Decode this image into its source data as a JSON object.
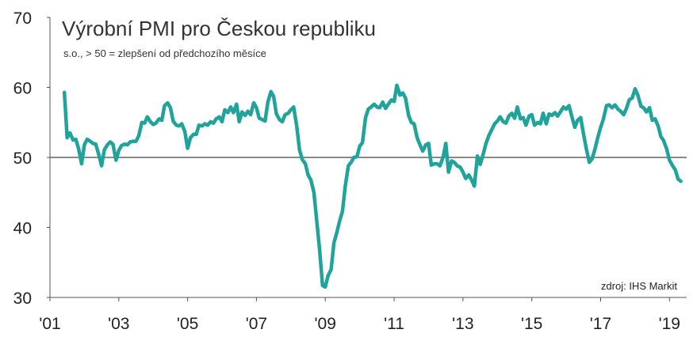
{
  "chart_data": {
    "type": "line",
    "title": "Výrobní PMI pro Českou republiku",
    "subtitle": "s.o., > 50 = zlepšení od předchozího měsíce",
    "source": "zdroj: IHS Markit",
    "xlabel": "",
    "ylabel": "",
    "xlim": [
      2001.0,
      2019.5
    ],
    "ylim": [
      30,
      70
    ],
    "yticks": [
      30,
      40,
      50,
      60,
      70
    ],
    "ytick_labels": [
      "30",
      "40",
      "50",
      "60",
      "70"
    ],
    "xticks": [
      2001,
      2003,
      2005,
      2007,
      2009,
      2011,
      2013,
      2015,
      2017,
      2019
    ],
    "xtick_labels": [
      "'01",
      "'03",
      "'05",
      "'07",
      "'09",
      "'11",
      "'13",
      "'15",
      "'17",
      "'19"
    ],
    "reference_line": 50,
    "grid": false,
    "line_color": "#1fa39a",
    "series": [
      {
        "x": [
          2001.42,
          2001.5,
          2001.58,
          2001.67,
          2001.75,
          2001.83,
          2001.92,
          2002.0,
          2002.08,
          2002.17,
          2002.25,
          2002.33,
          2002.42,
          2002.5,
          2002.58,
          2002.67,
          2002.75,
          2002.83,
          2002.92,
          2003.0,
          2003.08,
          2003.17,
          2003.25,
          2003.33,
          2003.42,
          2003.5,
          2003.58,
          2003.67,
          2003.75,
          2003.83,
          2003.92,
          2004.0,
          2004.08,
          2004.17,
          2004.25,
          2004.33,
          2004.42,
          2004.5,
          2004.58,
          2004.67,
          2004.75,
          2004.83,
          2004.92,
          2005.0,
          2005.08,
          2005.17,
          2005.25,
          2005.33,
          2005.42,
          2005.5,
          2005.58,
          2005.67,
          2005.75,
          2005.83,
          2005.92,
          2006.0,
          2006.08,
          2006.17,
          2006.25,
          2006.33,
          2006.42,
          2006.5,
          2006.58,
          2006.67,
          2006.75,
          2006.83,
          2006.92,
          2007.0,
          2007.08,
          2007.17,
          2007.25,
          2007.33,
          2007.42,
          2007.5,
          2007.58,
          2007.67,
          2007.75,
          2007.83,
          2007.92,
          2008.0,
          2008.08,
          2008.17,
          2008.25,
          2008.33,
          2008.42,
          2008.5,
          2008.58,
          2008.67,
          2008.75,
          2008.83,
          2008.92,
          2009.0,
          2009.08,
          2009.17,
          2009.25,
          2009.33,
          2009.42,
          2009.5,
          2009.58,
          2009.67,
          2009.75,
          2009.83,
          2009.92,
          2010.0,
          2010.08,
          2010.17,
          2010.25,
          2010.33,
          2010.42,
          2010.5,
          2010.58,
          2010.67,
          2010.75,
          2010.83,
          2010.92,
          2011.0,
          2011.08,
          2011.17,
          2011.25,
          2011.33,
          2011.42,
          2011.5,
          2011.58,
          2011.67,
          2011.75,
          2011.83,
          2011.92,
          2012.0,
          2012.08,
          2012.17,
          2012.25,
          2012.33,
          2012.42,
          2012.5,
          2012.58,
          2012.67,
          2012.75,
          2012.83,
          2012.92,
          2013.0,
          2013.08,
          2013.17,
          2013.25,
          2013.33,
          2013.42,
          2013.5,
          2013.58,
          2013.67,
          2013.75,
          2013.83,
          2013.92,
          2014.0,
          2014.08,
          2014.17,
          2014.25,
          2014.33,
          2014.42,
          2014.5,
          2014.58,
          2014.67,
          2014.75,
          2014.83,
          2014.92,
          2015.0,
          2015.08,
          2015.17,
          2015.25,
          2015.33,
          2015.42,
          2015.5,
          2015.58,
          2015.67,
          2015.75,
          2015.83,
          2015.92,
          2016.0,
          2016.08,
          2016.17,
          2016.25,
          2016.33,
          2016.42,
          2016.5,
          2016.58,
          2016.67,
          2016.75,
          2016.83,
          2016.92,
          2017.0,
          2017.08,
          2017.17,
          2017.25,
          2017.33,
          2017.42,
          2017.5,
          2017.58,
          2017.67,
          2017.75,
          2017.83,
          2017.92,
          2018.0,
          2018.08,
          2018.17,
          2018.25,
          2018.33,
          2018.42,
          2018.5,
          2018.58,
          2018.67,
          2018.75,
          2018.83,
          2018.92,
          2019.0,
          2019.08,
          2019.17,
          2019.25,
          2019.33
        ],
        "y": [
          59.3,
          52.8,
          53.5,
          52.5,
          52.6,
          51.3,
          49.1,
          51.8,
          52.6,
          52.3,
          52.0,
          51.9,
          50.4,
          48.8,
          51.1,
          51.8,
          52.2,
          51.9,
          49.6,
          51.0,
          51.7,
          51.9,
          51.8,
          52.2,
          52.3,
          52.3,
          53.1,
          55.0,
          54.9,
          55.8,
          55.1,
          54.7,
          54.9,
          55.5,
          55.3,
          57.4,
          57.8,
          57.1,
          55.2,
          54.6,
          54.5,
          54.8,
          53.7,
          51.3,
          52.8,
          53.3,
          53.3,
          54.6,
          54.5,
          54.8,
          54.6,
          55.1,
          54.9,
          55.5,
          55.8,
          55.1,
          56.8,
          56.4,
          57.2,
          56.4,
          57.6,
          55.1,
          56.5,
          56.0,
          56.6,
          56.1,
          57.8,
          57.1,
          55.6,
          55.4,
          55.2,
          57.9,
          59.4,
          58.7,
          56.2,
          55.4,
          55.1,
          56.1,
          56.3,
          56.8,
          57.2,
          54.5,
          51.1,
          49.7,
          49.1,
          47.5,
          46.8,
          45.0,
          41.0,
          37.0,
          31.7,
          31.5,
          33.1,
          34.0,
          37.8,
          39.2,
          41.0,
          42.3,
          45.9,
          48.8,
          49.3,
          50.0,
          50.1,
          51.6,
          52.1,
          55.7,
          56.9,
          57.2,
          57.6,
          57.2,
          57.1,
          57.9,
          57.0,
          57.6,
          58.2,
          58.0,
          60.3,
          58.9,
          59.2,
          58.5,
          56.0,
          55.0,
          54.8,
          52.8,
          51.8,
          50.9,
          51.8,
          52.0,
          48.9,
          49.1,
          49.1,
          48.8,
          50.0,
          52.0,
          47.9,
          49.5,
          49.3,
          48.8,
          48.6,
          47.9,
          47.0,
          47.5,
          46.8,
          45.9,
          50.2,
          49.0,
          50.3,
          52.0,
          53.1,
          53.9,
          54.8,
          55.2,
          55.8,
          55.1,
          54.9,
          55.9,
          56.3,
          55.6,
          57.2,
          55.5,
          55.7,
          54.6,
          55.9,
          56.1,
          54.6,
          55.0,
          54.8,
          56.3,
          54.8,
          56.2,
          56.0,
          56.4,
          55.9,
          56.5,
          57.2,
          56.9,
          57.4,
          55.7,
          54.3,
          55.3,
          55.7,
          53.4,
          51.3,
          49.3,
          49.8,
          51.1,
          52.9,
          54.3,
          55.5,
          57.4,
          57.5,
          57.1,
          57.5,
          56.9,
          56.6,
          56.1,
          57.0,
          58.2,
          58.5,
          59.8,
          58.9,
          57.3,
          57.1,
          56.5,
          57.1,
          55.3,
          55.5,
          54.5,
          53.0,
          52.4,
          51.2,
          49.6,
          48.9,
          48.2,
          46.9,
          46.6
        ]
      }
    ]
  }
}
